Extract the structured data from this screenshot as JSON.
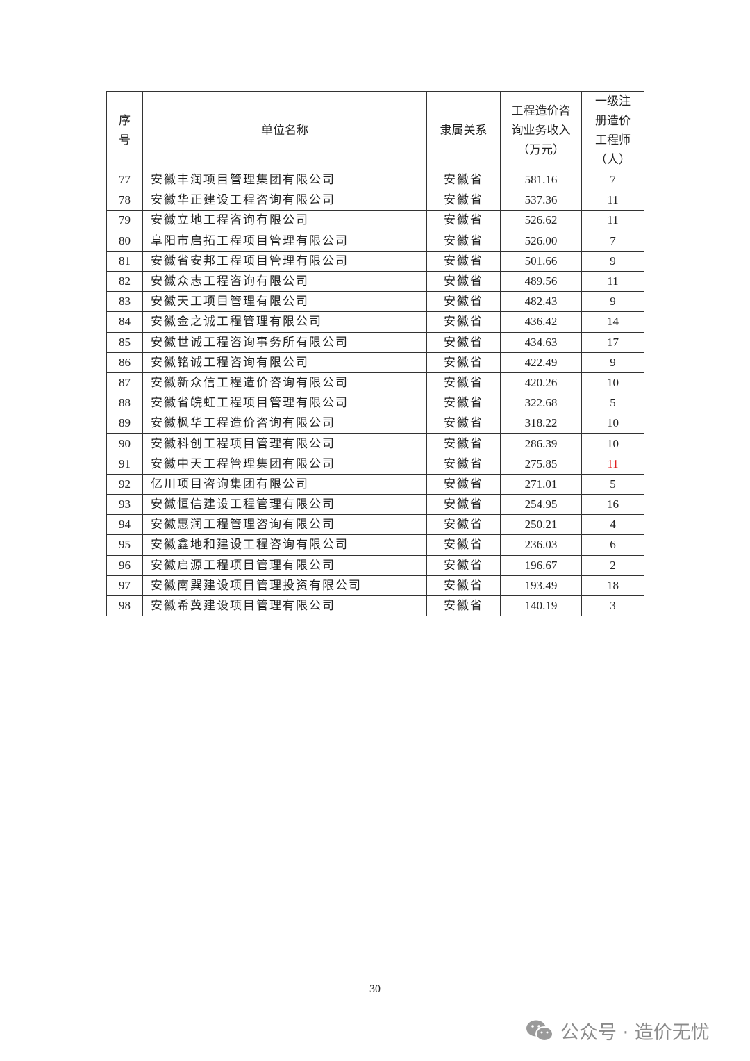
{
  "table": {
    "headers": [
      "序号",
      "单位名称",
      "隶属关系",
      "工程造价咨询业务收入（万元）",
      "一级注册造价工程师（人）"
    ],
    "header_lines": {
      "h0": [
        "序",
        "号"
      ],
      "h3": [
        "工程造价咨",
        "询业务收入",
        "（万元）"
      ],
      "h4": [
        "一级注",
        "册造价",
        "工程师",
        "（人）"
      ]
    },
    "rows": [
      {
        "no": "77",
        "name": "安徽丰润项目管理集团有限公司",
        "rel": "安徽省",
        "income": "581.16",
        "eng": "7"
      },
      {
        "no": "78",
        "name": "安徽华正建设工程咨询有限公司",
        "rel": "安徽省",
        "income": "537.36",
        "eng": "11"
      },
      {
        "no": "79",
        "name": "安徽立地工程咨询有限公司",
        "rel": "安徽省",
        "income": "526.62",
        "eng": "11"
      },
      {
        "no": "80",
        "name": "阜阳市启拓工程项目管理有限公司",
        "rel": "安徽省",
        "income": "526.00",
        "eng": "7"
      },
      {
        "no": "81",
        "name": "安徽省安邦工程项目管理有限公司",
        "rel": "安徽省",
        "income": "501.66",
        "eng": "9"
      },
      {
        "no": "82",
        "name": "安徽众志工程咨询有限公司",
        "rel": "安徽省",
        "income": "489.56",
        "eng": "11"
      },
      {
        "no": "83",
        "name": "安徽天工项目管理有限公司",
        "rel": "安徽省",
        "income": "482.43",
        "eng": "9"
      },
      {
        "no": "84",
        "name": "安徽金之诚工程管理有限公司",
        "rel": "安徽省",
        "income": "436.42",
        "eng": "14"
      },
      {
        "no": "85",
        "name": "安徽世诚工程咨询事务所有限公司",
        "rel": "安徽省",
        "income": "434.63",
        "eng": "17"
      },
      {
        "no": "86",
        "name": "安徽铭诚工程咨询有限公司",
        "rel": "安徽省",
        "income": "422.49",
        "eng": "9"
      },
      {
        "no": "87",
        "name": "安徽新众信工程造价咨询有限公司",
        "rel": "安徽省",
        "income": "420.26",
        "eng": "10"
      },
      {
        "no": "88",
        "name": "安徽省皖虹工程项目管理有限公司",
        "rel": "安徽省",
        "income": "322.68",
        "eng": "5"
      },
      {
        "no": "89",
        "name": "安徽枫华工程造价咨询有限公司",
        "rel": "安徽省",
        "income": "318.22",
        "eng": "10"
      },
      {
        "no": "90",
        "name": "安徽科创工程项目管理有限公司",
        "rel": "安徽省",
        "income": "286.39",
        "eng": "10"
      },
      {
        "no": "91",
        "name": "安徽中天工程管理集团有限公司",
        "rel": "安徽省",
        "income": "275.85",
        "eng": "11",
        "eng_color": "#e02020"
      },
      {
        "no": "92",
        "name": "亿川项目咨询集团有限公司",
        "rel": "安徽省",
        "income": "271.01",
        "eng": "5"
      },
      {
        "no": "93",
        "name": "安徽恒信建设工程管理有限公司",
        "rel": "安徽省",
        "income": "254.95",
        "eng": "16"
      },
      {
        "no": "94",
        "name": "安徽惠润工程管理咨询有限公司",
        "rel": "安徽省",
        "income": "250.21",
        "eng": "4"
      },
      {
        "no": "95",
        "name": "安徽鑫地和建设工程咨询有限公司",
        "rel": "安徽省",
        "income": "236.03",
        "eng": "6"
      },
      {
        "no": "96",
        "name": "安徽启源工程项目管理有限公司",
        "rel": "安徽省",
        "income": "196.67",
        "eng": "2"
      },
      {
        "no": "97",
        "name": "安徽南巽建设项目管理投资有限公司",
        "rel": "安徽省",
        "income": "193.49",
        "eng": "18"
      },
      {
        "no": "98",
        "name": "安徽希冀建设项目管理有限公司",
        "rel": "安徽省",
        "income": "140.19",
        "eng": "3"
      }
    ]
  },
  "page_number": "30",
  "watermark": {
    "icon": "wechat-icon",
    "text": "公众号 · 造价无忧"
  }
}
